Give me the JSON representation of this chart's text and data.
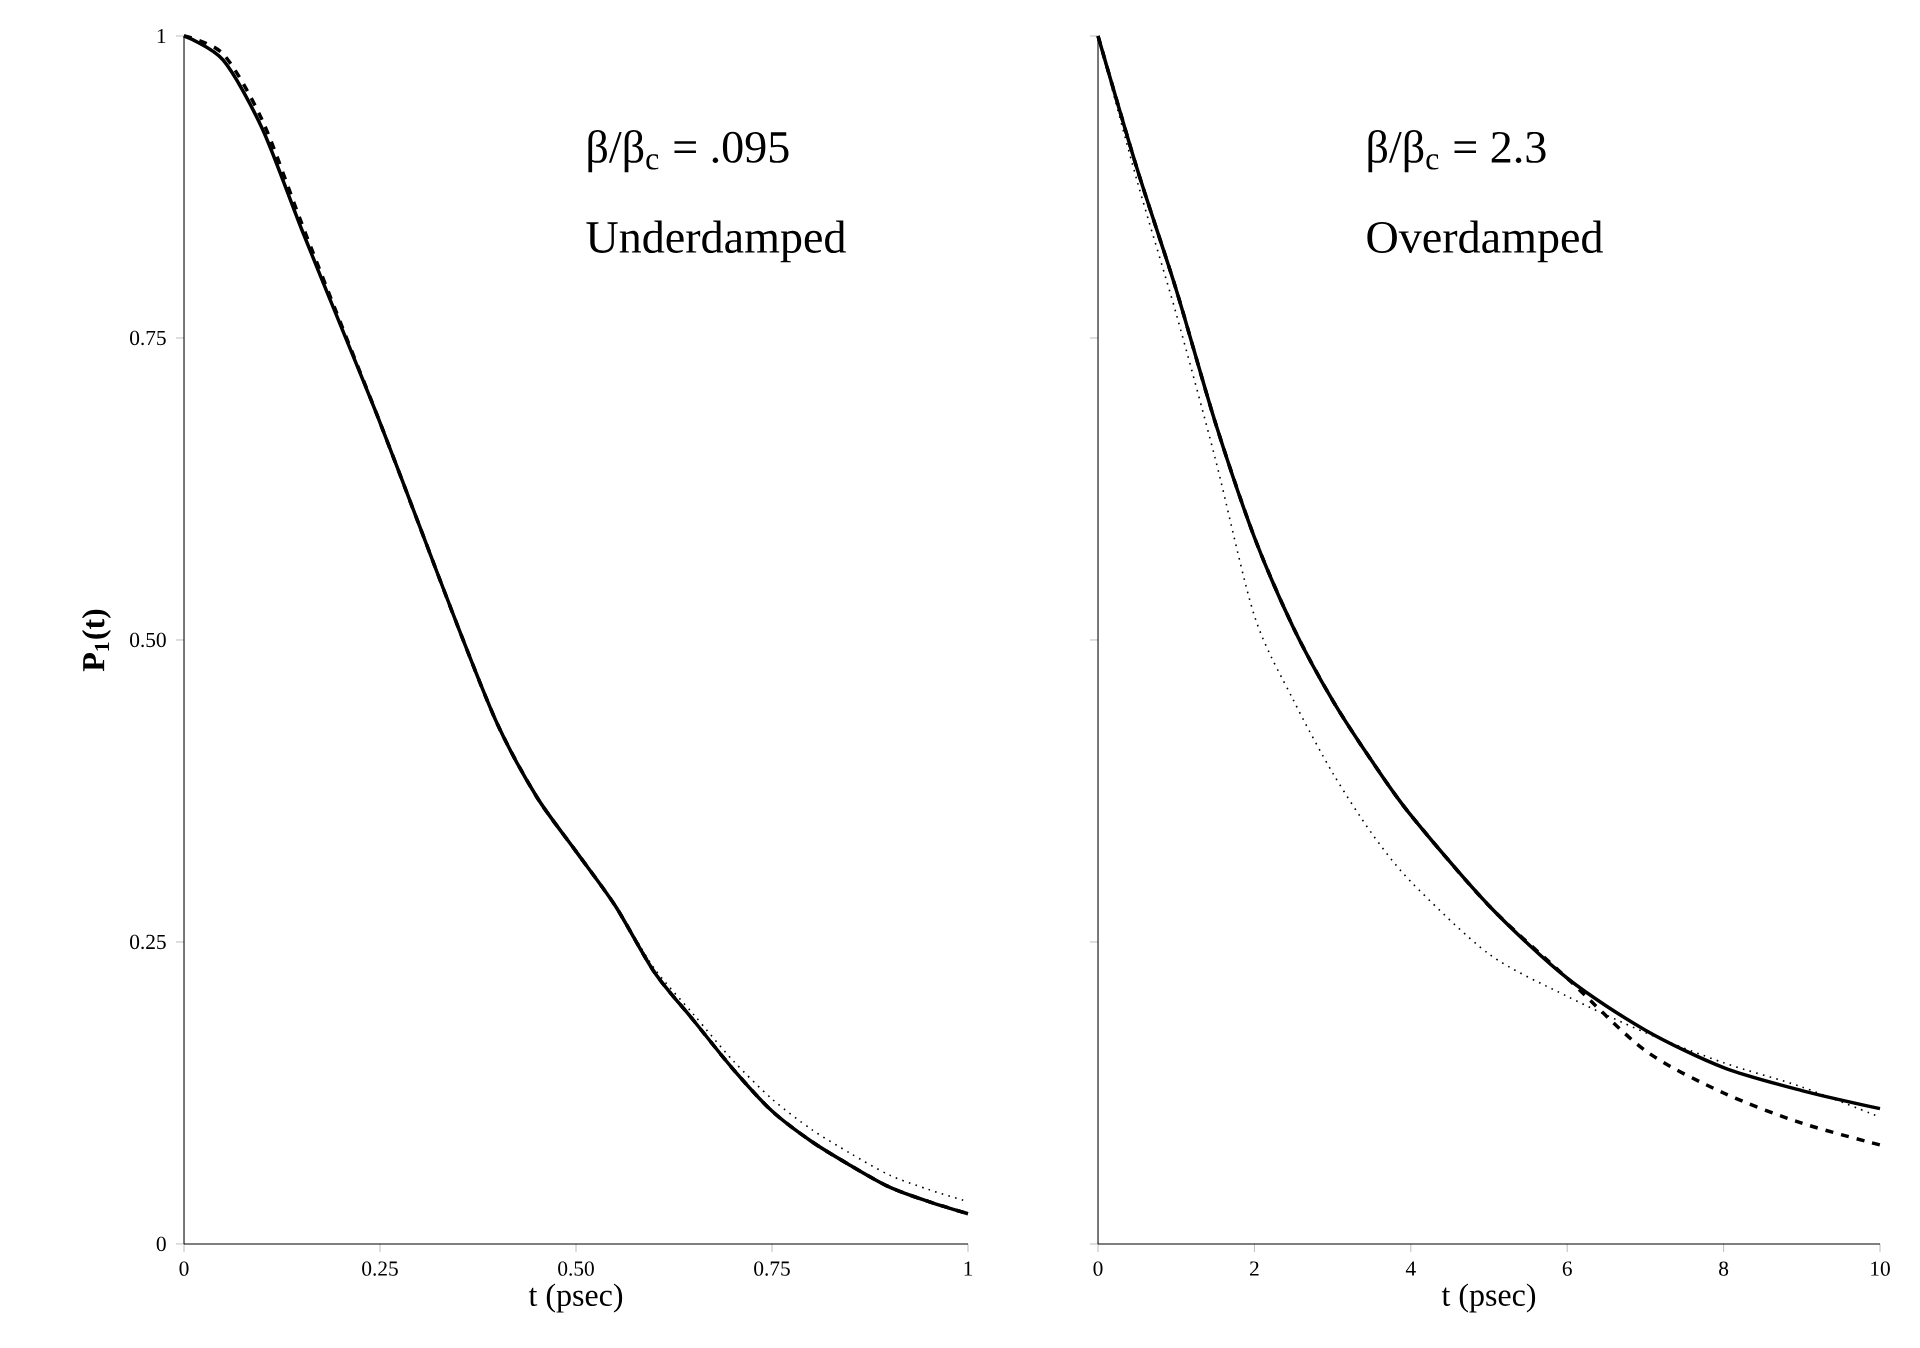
{
  "chart_data": [
    {
      "type": "line",
      "xlabel": "t (psec)",
      "ylabel": "P$_{1}$(t)",
      "annotations": [
        "β/β$_{c}$ = .095",
        "Underdamped"
      ],
      "x": [
        0,
        0.05,
        0.1,
        0.15,
        0.2,
        0.25,
        0.3,
        0.35,
        0.4,
        0.45,
        0.5,
        0.55,
        0.6,
        0.65,
        0.7,
        0.75,
        0.8,
        0.85,
        0.9,
        0.95,
        1
      ],
      "xlim": [
        0,
        1
      ],
      "ylim": [
        0,
        1
      ],
      "xticks": [
        0,
        0.25,
        {
          "value": 0.5,
          "label": "0.50"
        },
        0.75,
        1
      ],
      "yticks": [
        0,
        0.25,
        {
          "value": 0.5,
          "label": "0.50"
        },
        0.75,
        1
      ],
      "series": [
        {
          "color": "#000000",
          "line_style": "solid",
          "values": [
            1,
            0.98,
            0.923,
            0.84,
            0.76,
            0.68,
            0.595,
            0.51,
            0.43,
            0.37,
            0.325,
            0.28,
            0.225,
            0.185,
            0.145,
            0.11,
            0.085,
            0.065,
            0.047,
            0.035,
            0.025
          ]
        },
        {
          "color": "#000000",
          "line_style": "dashed",
          "values": [
            1,
            0.985,
            0.93,
            0.845,
            0.762,
            0.68,
            0.595,
            0.51,
            0.43,
            0.37,
            0.325,
            0.28,
            0.225,
            0.185,
            0.145,
            0.11,
            0.085,
            0.065,
            0.047,
            0.035,
            0.025
          ]
        },
        {
          "color": "#000000",
          "line_style": "dotted",
          "values": [
            1,
            0.98,
            0.923,
            0.84,
            0.76,
            0.68,
            0.595,
            0.51,
            0.43,
            0.37,
            0.325,
            0.28,
            0.228,
            0.19,
            0.152,
            0.12,
            0.095,
            0.075,
            0.057,
            0.045,
            0.035
          ]
        }
      ]
    },
    {
      "type": "line",
      "xlabel": "t (psec)",
      "annotations": [
        "β/β$_{c}$ = 2.3",
        "Overdamped"
      ],
      "x": [
        0,
        0.5,
        1,
        1.5,
        2,
        2.5,
        3,
        3.5,
        4,
        5,
        6,
        7,
        8,
        9,
        10
      ],
      "xlim": [
        0,
        10
      ],
      "ylim": [
        0,
        1
      ],
      "tick_labels": "x",
      "xticks": [
        0,
        2,
        4,
        6,
        8,
        10
      ],
      "yticks": [
        0,
        0.25,
        0.5,
        0.75,
        1
      ],
      "series": [
        {
          "color": "#000000",
          "line_style": "solid",
          "values": [
            1,
            0.89,
            0.79,
            0.68,
            0.585,
            0.51,
            0.45,
            0.4,
            0.355,
            0.28,
            0.22,
            0.177,
            0.146,
            0.127,
            0.112
          ]
        },
        {
          "color": "#000000",
          "line_style": "dashed",
          "values": [
            1,
            0.89,
            0.79,
            0.68,
            0.585,
            0.51,
            0.45,
            0.4,
            0.355,
            0.28,
            0.22,
            0.16,
            0.125,
            0.1,
            0.082
          ]
        },
        {
          "color": "#000000",
          "line_style": "dotted",
          "values": [
            1,
            0.88,
            0.77,
            0.65,
            0.52,
            0.45,
            0.39,
            0.34,
            0.3,
            0.24,
            0.205,
            0.175,
            0.15,
            0.13,
            0.105
          ]
        }
      ]
    }
  ]
}
